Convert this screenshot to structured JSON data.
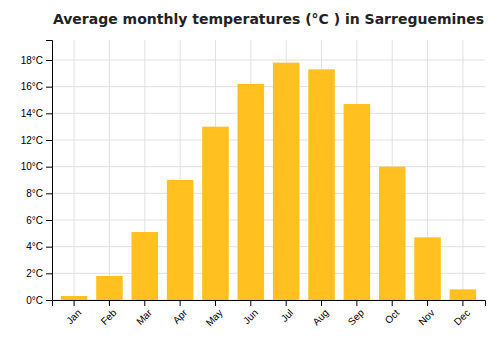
{
  "chart_data": {
    "type": "bar",
    "title": "Average monthly temperatures (°C ) in Sarreguemines",
    "categories": [
      "Jan",
      "Feb",
      "Mar",
      "Apr",
      "May",
      "Jun",
      "Jul",
      "Aug",
      "Sep",
      "Oct",
      "Nov",
      "Dec"
    ],
    "values": [
      0.3,
      1.8,
      5.1,
      9.0,
      13.0,
      16.2,
      17.8,
      17.3,
      14.7,
      10.0,
      4.7,
      0.8
    ],
    "color": "#FFC020",
    "ylim": [
      0,
      19.5
    ],
    "yticks": [
      {
        "value": 0,
        "label": "0°C"
      },
      {
        "value": 2,
        "label": "2°C"
      },
      {
        "value": 4,
        "label": "4°C"
      },
      {
        "value": 6,
        "label": "6°C"
      },
      {
        "value": 8,
        "label": "8°C"
      },
      {
        "value": 10,
        "label": "10°C"
      },
      {
        "value": 12,
        "label": "12°C"
      },
      {
        "value": 14,
        "label": "14°C"
      },
      {
        "value": 16,
        "label": "16°C"
      },
      {
        "value": 18,
        "label": "18°C"
      }
    ],
    "grid": true
  }
}
